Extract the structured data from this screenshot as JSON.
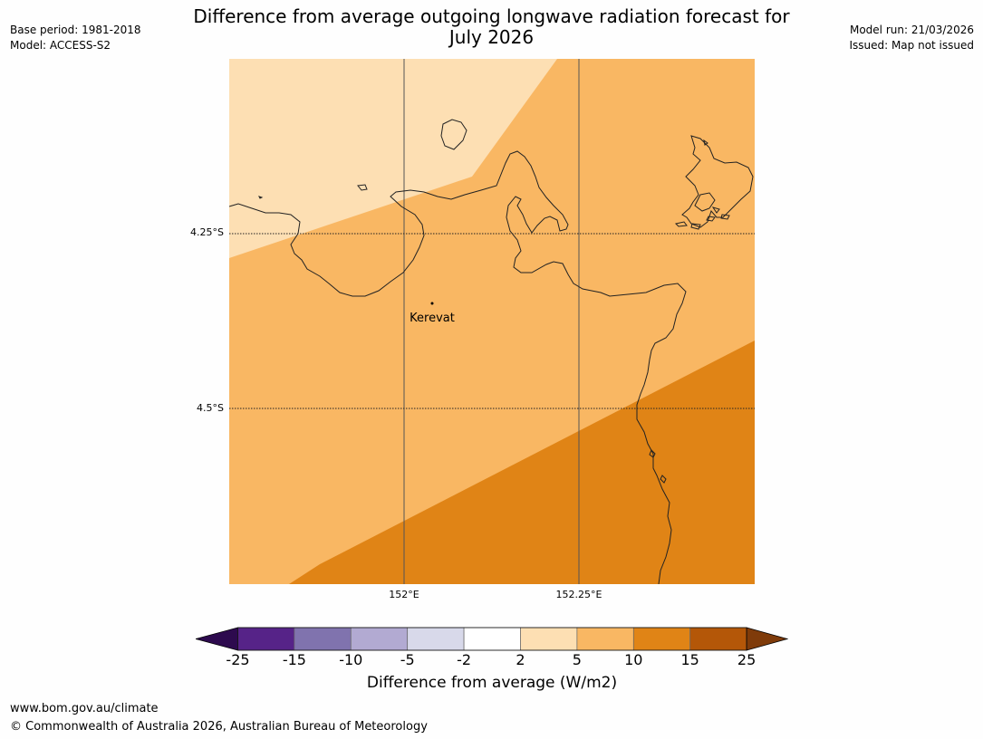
{
  "header": {
    "title_line1": "Difference from average outgoing longwave radiation forecast for",
    "title_line2": "July 2026",
    "base_period": "Base period: 1981-2018",
    "model": "Model: ACCESS-S2",
    "model_run": "Model run: 21/03/2026",
    "issued": "Issued: Map not issued"
  },
  "map": {
    "latitude_labels": [
      "4.25°S",
      "4.5°S"
    ],
    "longitude_labels": [
      "152°E",
      "152.25°E"
    ],
    "place": {
      "name": "Kerevat"
    },
    "colors": {
      "band_2_5": "#fddfb3",
      "band_5_10": "#f9b763",
      "band_10_15": "#e08416",
      "coast": "#222222"
    }
  },
  "colorbar": {
    "ticks": [
      "-25",
      "-15",
      "-10",
      "-5",
      "-2",
      "2",
      "5",
      "10",
      "15",
      "25"
    ],
    "colors": [
      "#2d0a4e",
      "#562388",
      "#8073ae",
      "#b2aad2",
      "#d8d9ea",
      "#ffffff",
      "#fddfb3",
      "#f9b763",
      "#e08416",
      "#b45708",
      "#7f3b0a"
    ],
    "label": "Difference from average (W/m2)"
  },
  "footer": {
    "url": "www.bom.gov.au/climate",
    "copyright": "© Commonwealth of Australia 2026, Australian Bureau of Meteorology"
  }
}
